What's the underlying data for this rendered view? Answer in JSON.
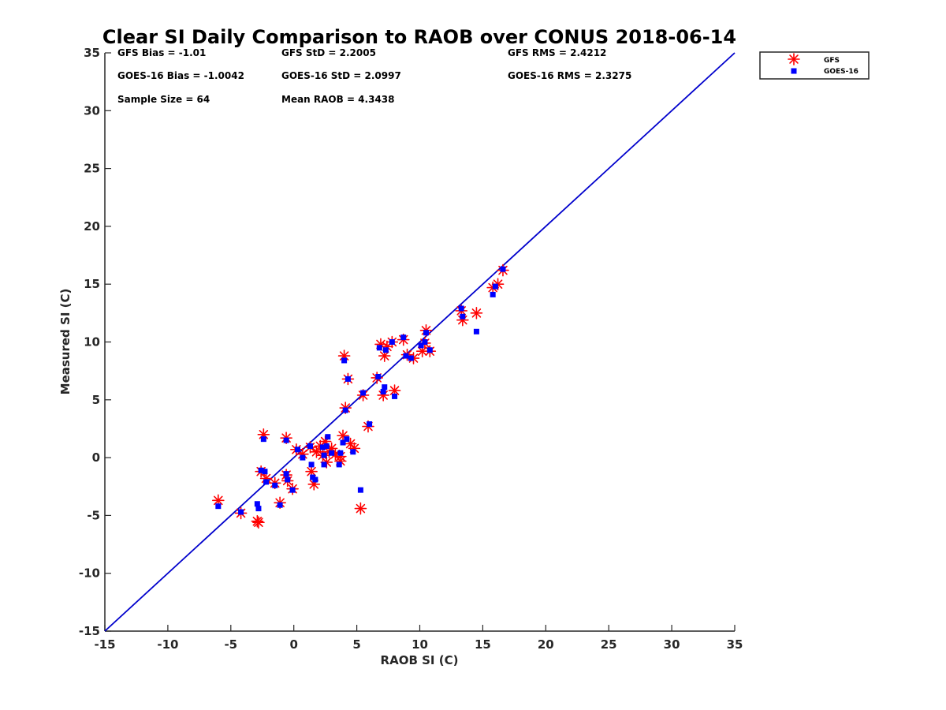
{
  "chart_data": {
    "type": "scatter",
    "title": "Clear SI Daily Comparison to RAOB over CONUS 2018-06-14",
    "xlabel": "RAOB SI (C)",
    "ylabel": "Measured SI (C)",
    "xlim": [
      -15,
      35
    ],
    "ylim": [
      -15,
      35
    ],
    "xticks": [
      -15,
      -10,
      -5,
      0,
      5,
      10,
      15,
      20,
      25,
      30,
      35
    ],
    "yticks": [
      -15,
      -10,
      -5,
      0,
      5,
      10,
      15,
      20,
      25,
      30,
      35
    ],
    "reference_line": {
      "name": "1:1 line",
      "color": "#0000cc",
      "from": [
        -15,
        -15
      ],
      "to": [
        35,
        35
      ]
    },
    "legend_position": "top-right (outside plot)",
    "stats": {
      "gfs_bias": "GFS Bias = -1.01",
      "gfs_std": "GFS StD = 2.2005",
      "gfs_rms": "GFS RMS = 2.4212",
      "goes_bias": "GOES-16 Bias = -1.0042",
      "goes_std": "GOES-16 StD = 2.0997",
      "goes_rms": "GOES-16 RMS = 2.3275",
      "sample_size": "Sample Size = 64",
      "mean_raob": "Mean RAOB = 4.3438"
    },
    "series": [
      {
        "name": "GFS",
        "color": "#ff0000",
        "marker": "asterisk",
        "points": [
          [
            -6,
            -3.7
          ],
          [
            -4.2,
            -4.8
          ],
          [
            -2.9,
            -5.5
          ],
          [
            -2.8,
            -5.6
          ],
          [
            -2.6,
            -1.2
          ],
          [
            -2.4,
            2.0
          ],
          [
            -2.2,
            -1.8
          ],
          [
            -1.5,
            -2.2
          ],
          [
            -1.1,
            -3.9
          ],
          [
            -0.6,
            1.7
          ],
          [
            -0.6,
            -1.5
          ],
          [
            -0.5,
            -2.0
          ],
          [
            -0.1,
            -2.7
          ],
          [
            0.2,
            0.7
          ],
          [
            0.7,
            0.3
          ],
          [
            1.3,
            0.9
          ],
          [
            1.4,
            -1.2
          ],
          [
            1.6,
            -2.3
          ],
          [
            1.8,
            0.5
          ],
          [
            2.1,
            1.0
          ],
          [
            2.3,
            0.2
          ],
          [
            2.5,
            1.4
          ],
          [
            2.6,
            -0.4
          ],
          [
            2.8,
            0.5
          ],
          [
            3.0,
            0.8
          ],
          [
            3.3,
            0.3
          ],
          [
            3.7,
            0.1
          ],
          [
            3.7,
            -0.3
          ],
          [
            3.9,
            1.9
          ],
          [
            4.0,
            8.8
          ],
          [
            4.1,
            4.3
          ],
          [
            4.3,
            6.8
          ],
          [
            4.5,
            1.2
          ],
          [
            4.8,
            0.8
          ],
          [
            5.3,
            -4.4
          ],
          [
            5.5,
            5.4
          ],
          [
            5.9,
            2.7
          ],
          [
            6.6,
            6.9
          ],
          [
            6.9,
            9.8
          ],
          [
            7.1,
            5.4
          ],
          [
            7.2,
            8.8
          ],
          [
            7.4,
            9.6
          ],
          [
            7.8,
            10.0
          ],
          [
            8.0,
            5.8
          ],
          [
            8.7,
            10.2
          ],
          [
            9.0,
            8.9
          ],
          [
            9.5,
            8.6
          ],
          [
            10.2,
            9.2
          ],
          [
            10.4,
            9.9
          ],
          [
            10.5,
            11.0
          ],
          [
            10.8,
            9.2
          ],
          [
            13.3,
            12.7
          ],
          [
            13.4,
            11.9
          ],
          [
            14.5,
            12.5
          ],
          [
            15.8,
            14.7
          ],
          [
            16.2,
            15.0
          ],
          [
            16.6,
            16.2
          ]
        ]
      },
      {
        "name": "GOES-16",
        "color": "#0000ff",
        "marker": "square",
        "points": [
          [
            -6,
            -4.2
          ],
          [
            -4.2,
            -4.7
          ],
          [
            -2.9,
            -4.0
          ],
          [
            -2.8,
            -4.4
          ],
          [
            -2.6,
            -1.1
          ],
          [
            -2.4,
            1.6
          ],
          [
            -2.3,
            -1.2
          ],
          [
            -2.2,
            -2.1
          ],
          [
            -1.5,
            -2.4
          ],
          [
            -1.1,
            -4.1
          ],
          [
            -0.6,
            1.5
          ],
          [
            -0.6,
            -1.4
          ],
          [
            -0.5,
            -1.9
          ],
          [
            -0.1,
            -2.8
          ],
          [
            0.3,
            0.7
          ],
          [
            0.7,
            0.0
          ],
          [
            1.3,
            1.0
          ],
          [
            1.4,
            -0.6
          ],
          [
            1.5,
            -1.7
          ],
          [
            1.7,
            -1.9
          ],
          [
            2.3,
            0.9
          ],
          [
            2.4,
            0.2
          ],
          [
            2.4,
            -0.6
          ],
          [
            2.6,
            1.0
          ],
          [
            2.7,
            1.8
          ],
          [
            3.0,
            0.4
          ],
          [
            3.6,
            -0.6
          ],
          [
            3.7,
            0.4
          ],
          [
            3.9,
            1.3
          ],
          [
            4.0,
            8.4
          ],
          [
            4.1,
            4.1
          ],
          [
            4.2,
            1.6
          ],
          [
            4.3,
            6.8
          ],
          [
            4.7,
            0.5
          ],
          [
            5.3,
            -2.8
          ],
          [
            5.5,
            5.6
          ],
          [
            6.0,
            2.9
          ],
          [
            6.7,
            7.0
          ],
          [
            6.8,
            9.5
          ],
          [
            7.1,
            5.7
          ],
          [
            7.2,
            6.1
          ],
          [
            7.3,
            9.3
          ],
          [
            7.8,
            10.0
          ],
          [
            8.0,
            5.3
          ],
          [
            8.7,
            10.4
          ],
          [
            8.9,
            8.8
          ],
          [
            9.3,
            8.6
          ],
          [
            10.1,
            9.7
          ],
          [
            10.4,
            10.0
          ],
          [
            10.5,
            10.8
          ],
          [
            10.8,
            9.3
          ],
          [
            13.3,
            12.9
          ],
          [
            13.4,
            12.2
          ],
          [
            14.5,
            10.9
          ],
          [
            15.8,
            14.1
          ],
          [
            16.0,
            14.8
          ],
          [
            16.6,
            16.3
          ]
        ]
      }
    ]
  }
}
